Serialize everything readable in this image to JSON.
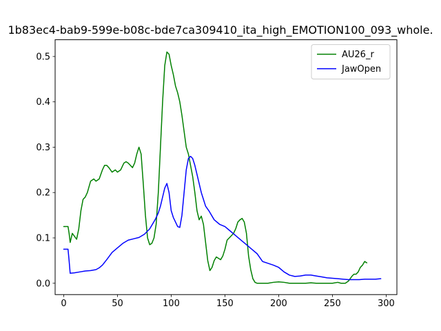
{
  "chart_data": {
    "type": "line",
    "title": "1b83ec4-bab9-599e-b08c-bde7ca309410_ita_high_EMOTION100_093_whole.",
    "xlabel": "",
    "ylabel": "",
    "xlim": [
      -8,
      310
    ],
    "ylim": [
      -0.025,
      0.537
    ],
    "xticks": [
      0,
      50,
      100,
      150,
      200,
      250,
      300
    ],
    "yticks": [
      0.0,
      0.1,
      0.2,
      0.3,
      0.4,
      0.5
    ],
    "ytick_labels": [
      "0.0",
      "0.1",
      "0.2",
      "0.3",
      "0.4",
      "0.5"
    ],
    "grid": false,
    "legend_position": "top-right",
    "series": [
      {
        "name": "AU26_r",
        "color": "#008000",
        "x": [
          0,
          4,
          5,
          6,
          8,
          12,
          14,
          16,
          18,
          20,
          22,
          25,
          28,
          30,
          33,
          36,
          38,
          40,
          42,
          45,
          48,
          50,
          53,
          56,
          58,
          60,
          62,
          64,
          66,
          68,
          70,
          72,
          74,
          76,
          78,
          80,
          82,
          84,
          86,
          88,
          90,
          92,
          94,
          96,
          98,
          100,
          102,
          104,
          106,
          108,
          110,
          112,
          114,
          116,
          118,
          120,
          122,
          124,
          126,
          128,
          130,
          132,
          134,
          136,
          138,
          140,
          142,
          144,
          146,
          148,
          150,
          152,
          154,
          156,
          158,
          160,
          162,
          164,
          166,
          168,
          170,
          172,
          174,
          176,
          178,
          180,
          185,
          190,
          195,
          200,
          205,
          210,
          215,
          220,
          225,
          230,
          235,
          240,
          245,
          250,
          255,
          258,
          262,
          265,
          268,
          270,
          272,
          274,
          276,
          278,
          280,
          282
        ],
        "y": [
          0.125,
          0.125,
          0.11,
          0.09,
          0.11,
          0.097,
          0.12,
          0.16,
          0.185,
          0.19,
          0.2,
          0.225,
          0.23,
          0.225,
          0.23,
          0.25,
          0.26,
          0.26,
          0.255,
          0.245,
          0.25,
          0.245,
          0.25,
          0.265,
          0.268,
          0.265,
          0.26,
          0.255,
          0.265,
          0.285,
          0.3,
          0.285,
          0.22,
          0.15,
          0.1,
          0.085,
          0.088,
          0.1,
          0.13,
          0.2,
          0.3,
          0.4,
          0.48,
          0.51,
          0.505,
          0.48,
          0.46,
          0.435,
          0.42,
          0.4,
          0.37,
          0.335,
          0.3,
          0.285,
          0.26,
          0.235,
          0.2,
          0.16,
          0.14,
          0.148,
          0.13,
          0.09,
          0.05,
          0.028,
          0.035,
          0.05,
          0.058,
          0.055,
          0.052,
          0.06,
          0.075,
          0.095,
          0.1,
          0.105,
          0.11,
          0.12,
          0.135,
          0.14,
          0.143,
          0.135,
          0.11,
          0.06,
          0.03,
          0.01,
          0.002,
          0.0,
          0.0,
          0.0,
          0.002,
          0.003,
          0.002,
          0.0,
          0.0,
          0.0,
          0.0,
          0.001,
          0.0,
          0.0,
          0.0,
          0.0,
          0.002,
          0.0,
          0.0,
          0.005,
          0.015,
          0.02,
          0.02,
          0.025,
          0.035,
          0.04,
          0.048,
          0.045
        ]
      },
      {
        "name": "JawOpen",
        "color": "#0000ff",
        "x": [
          0,
          4,
          5,
          6,
          10,
          15,
          20,
          25,
          30,
          33,
          36,
          40,
          45,
          50,
          55,
          60,
          65,
          70,
          75,
          80,
          85,
          88,
          90,
          92,
          94,
          96,
          98,
          100,
          102,
          104,
          106,
          108,
          110,
          112,
          114,
          116,
          118,
          120,
          122,
          124,
          126,
          128,
          130,
          132,
          135,
          140,
          145,
          150,
          155,
          160,
          165,
          170,
          175,
          180,
          185,
          190,
          195,
          200,
          205,
          210,
          215,
          220,
          225,
          230,
          235,
          240,
          245,
          250,
          255,
          260,
          265,
          270,
          275,
          280,
          285,
          290,
          295
        ],
        "y": [
          0.075,
          0.075,
          0.05,
          0.022,
          0.023,
          0.025,
          0.027,
          0.028,
          0.03,
          0.034,
          0.04,
          0.052,
          0.068,
          0.078,
          0.088,
          0.095,
          0.098,
          0.101,
          0.108,
          0.12,
          0.14,
          0.155,
          0.17,
          0.19,
          0.21,
          0.22,
          0.2,
          0.16,
          0.145,
          0.135,
          0.125,
          0.123,
          0.15,
          0.2,
          0.25,
          0.275,
          0.28,
          0.275,
          0.26,
          0.24,
          0.22,
          0.2,
          0.185,
          0.17,
          0.16,
          0.14,
          0.13,
          0.125,
          0.115,
          0.105,
          0.095,
          0.085,
          0.075,
          0.065,
          0.048,
          0.044,
          0.04,
          0.035,
          0.025,
          0.018,
          0.015,
          0.016,
          0.018,
          0.018,
          0.016,
          0.014,
          0.012,
          0.011,
          0.01,
          0.009,
          0.008,
          0.008,
          0.008,
          0.009,
          0.009,
          0.009,
          0.01
        ]
      }
    ]
  }
}
